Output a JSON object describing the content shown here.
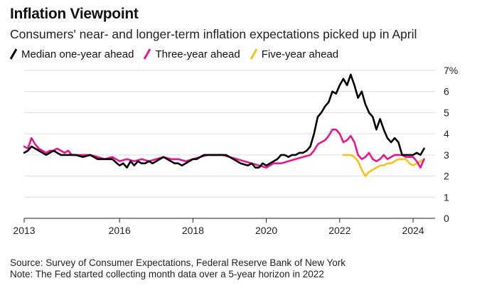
{
  "header": {
    "title": "Inflation Viewpoint",
    "subtitle": "Consumers' near- and longer-term inflation expectations picked up in April"
  },
  "legend": {
    "items": [
      {
        "label": "Median one-year ahead",
        "color": "#000000"
      },
      {
        "label": "Three-year ahead",
        "color": "#e6168f"
      },
      {
        "label": "Five-year ahead",
        "color": "#f5c319"
      }
    ]
  },
  "footer": {
    "source": "Source: Survey of Consumer Expectations, Federal Reserve Bank of New York",
    "note": "Note: The Fed started collecting month data over a 5-year horizon in 2022"
  },
  "chart_data": {
    "type": "line",
    "title": "Inflation Viewpoint",
    "xlabel": "",
    "ylabel": "%",
    "xlim": [
      2013.4,
      2024.6
    ],
    "ylim": [
      0,
      7
    ],
    "x_ticks": [
      {
        "value": 2013.4,
        "label": "2013"
      },
      {
        "value": 2016.0,
        "label": "2016"
      },
      {
        "value": 2018.0,
        "label": "2018"
      },
      {
        "value": 2020.0,
        "label": "2020"
      },
      {
        "value": 2022.0,
        "label": "2022"
      },
      {
        "value": 2024.0,
        "label": "2024"
      }
    ],
    "y_ticks": [
      {
        "value": 0,
        "label": "0"
      },
      {
        "value": 1,
        "label": "1"
      },
      {
        "value": 2,
        "label": "2"
      },
      {
        "value": 3,
        "label": "3"
      },
      {
        "value": 4,
        "label": "4"
      },
      {
        "value": 5,
        "label": "5"
      },
      {
        "value": 6,
        "label": "6"
      },
      {
        "value": 7,
        "label": "7%"
      }
    ],
    "grid": true,
    "series": [
      {
        "name": "Median one-year ahead",
        "color": "#000000",
        "x": [
          2013.4,
          2013.5,
          2013.6,
          2013.7,
          2013.8,
          2013.9,
          2014.0,
          2014.1,
          2014.2,
          2014.3,
          2014.4,
          2014.5,
          2014.6,
          2014.7,
          2014.8,
          2015.0,
          2015.2,
          2015.4,
          2015.6,
          2015.8,
          2016.0,
          2016.1,
          2016.2,
          2016.3,
          2016.4,
          2016.5,
          2016.6,
          2016.7,
          2016.8,
          2016.9,
          2017.0,
          2017.1,
          2017.2,
          2017.3,
          2017.4,
          2017.5,
          2017.6,
          2017.7,
          2017.8,
          2017.9,
          2018.0,
          2018.1,
          2018.2,
          2018.3,
          2018.4,
          2018.5,
          2018.7,
          2018.9,
          2019.1,
          2019.3,
          2019.5,
          2019.6,
          2019.7,
          2019.8,
          2019.9,
          2020.0,
          2020.1,
          2020.2,
          2020.3,
          2020.4,
          2020.5,
          2020.6,
          2020.7,
          2020.8,
          2020.9,
          2021.0,
          2021.1,
          2021.2,
          2021.3,
          2021.4,
          2021.5,
          2021.6,
          2021.7,
          2021.8,
          2021.9,
          2022.0,
          2022.1,
          2022.2,
          2022.3,
          2022.4,
          2022.5,
          2022.6,
          2022.7,
          2022.8,
          2022.9,
          2023.0,
          2023.1,
          2023.2,
          2023.3,
          2023.4,
          2023.5,
          2023.6,
          2023.7,
          2023.8,
          2023.9,
          2024.0,
          2024.1,
          2024.2,
          2024.3
        ],
        "values": [
          3.1,
          3.2,
          3.4,
          3.3,
          3.2,
          3.1,
          3.0,
          3.1,
          3.2,
          3.1,
          3.0,
          3.0,
          3.0,
          3.0,
          3.0,
          2.9,
          3.0,
          2.8,
          2.8,
          2.8,
          2.5,
          2.6,
          2.4,
          2.7,
          2.5,
          2.7,
          2.6,
          2.6,
          2.7,
          2.6,
          2.7,
          2.8,
          2.9,
          2.8,
          2.7,
          2.6,
          2.6,
          2.5,
          2.6,
          2.7,
          2.8,
          2.8,
          2.9,
          3.0,
          3.0,
          3.0,
          3.0,
          3.0,
          2.8,
          2.6,
          2.5,
          2.6,
          2.4,
          2.4,
          2.6,
          2.5,
          2.6,
          2.7,
          2.8,
          3.0,
          3.0,
          2.9,
          3.0,
          3.0,
          3.1,
          3.1,
          3.2,
          3.4,
          4.0,
          4.8,
          5.0,
          5.3,
          5.5,
          6.0,
          5.9,
          6.3,
          6.6,
          6.3,
          6.8,
          6.3,
          5.7,
          6.0,
          5.4,
          5.0,
          4.8,
          4.2,
          4.7,
          4.2,
          3.8,
          3.6,
          3.8,
          3.6,
          3.0,
          3.0,
          3.0,
          3.0,
          3.1,
          3.0,
          3.3
        ]
      },
      {
        "name": "Three-year ahead",
        "color": "#e6168f",
        "x": [
          2013.4,
          2013.5,
          2013.6,
          2013.7,
          2013.8,
          2013.9,
          2014.0,
          2014.1,
          2014.2,
          2014.3,
          2014.4,
          2014.5,
          2014.6,
          2014.7,
          2014.8,
          2015.0,
          2015.2,
          2015.4,
          2015.6,
          2015.8,
          2016.0,
          2016.2,
          2016.4,
          2016.6,
          2016.8,
          2017.0,
          2017.2,
          2017.4,
          2017.6,
          2017.8,
          2018.0,
          2018.2,
          2018.4,
          2018.6,
          2018.8,
          2019.0,
          2019.2,
          2019.4,
          2019.6,
          2019.8,
          2020.0,
          2020.2,
          2020.4,
          2020.6,
          2020.8,
          2021.0,
          2021.2,
          2021.3,
          2021.4,
          2021.5,
          2021.6,
          2021.7,
          2021.8,
          2021.9,
          2022.0,
          2022.1,
          2022.2,
          2022.3,
          2022.4,
          2022.5,
          2022.6,
          2022.7,
          2022.8,
          2022.9,
          2023.0,
          2023.1,
          2023.2,
          2023.3,
          2023.4,
          2023.5,
          2023.6,
          2023.7,
          2023.8,
          2023.9,
          2024.0,
          2024.1,
          2024.2,
          2024.3
        ],
        "values": [
          3.4,
          3.3,
          3.8,
          3.5,
          3.3,
          3.2,
          3.1,
          3.2,
          3.2,
          3.3,
          3.2,
          3.1,
          3.2,
          3.0,
          3.0,
          3.0,
          3.0,
          2.9,
          2.8,
          2.9,
          2.7,
          2.8,
          2.7,
          2.8,
          2.7,
          2.8,
          2.9,
          2.8,
          2.8,
          2.7,
          2.8,
          2.9,
          3.0,
          3.0,
          3.0,
          2.9,
          2.8,
          2.7,
          2.6,
          2.5,
          2.4,
          2.6,
          2.6,
          2.7,
          2.8,
          2.9,
          3.0,
          3.2,
          3.5,
          3.6,
          3.7,
          3.9,
          4.2,
          4.2,
          4.0,
          3.6,
          3.7,
          3.9,
          3.6,
          3.0,
          2.8,
          2.9,
          3.1,
          2.8,
          2.7,
          2.8,
          3.0,
          2.8,
          2.9,
          3.0,
          3.0,
          3.0,
          2.9,
          2.9,
          2.9,
          2.7,
          2.4,
          2.8
        ]
      },
      {
        "name": "Five-year ahead",
        "color": "#f5c319",
        "x": [
          2022.1,
          2022.2,
          2022.3,
          2022.4,
          2022.5,
          2022.6,
          2022.7,
          2022.8,
          2022.9,
          2023.0,
          2023.1,
          2023.2,
          2023.3,
          2023.4,
          2023.5,
          2023.6,
          2023.7,
          2023.8,
          2023.9,
          2024.0,
          2024.1,
          2024.2,
          2024.3
        ],
        "values": [
          3.0,
          3.0,
          3.0,
          2.9,
          2.7,
          2.3,
          2.0,
          2.2,
          2.3,
          2.4,
          2.5,
          2.5,
          2.6,
          2.6,
          2.7,
          2.8,
          2.8,
          2.8,
          2.6,
          2.5,
          2.6,
          2.7,
          2.8
        ]
      }
    ]
  }
}
